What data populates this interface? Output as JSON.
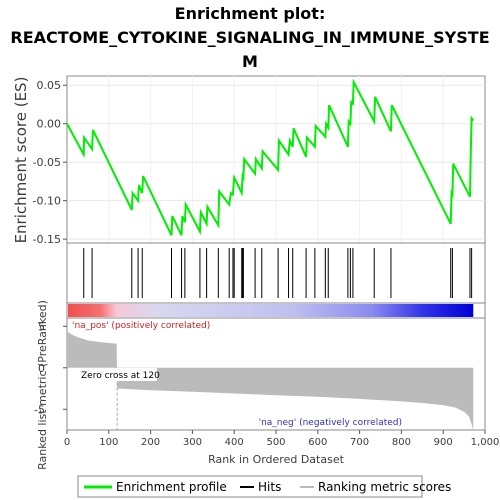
{
  "title_line1": "Enrichment plot:",
  "title_line2": "REACTOME_CYTOKINE_SIGNALING_IN_IMMUNE_SYSTE",
  "title_line3": "M",
  "colors": {
    "profile": "#00ee00",
    "hits": "#000000",
    "metric": "#bbbbbb",
    "pos_label": "#d02020",
    "neg_label": "#3030c0"
  },
  "chart_data": {
    "type": "line",
    "es_panel": {
      "ylabel": "Enrichment score (ES)",
      "ylim": [
        -0.155,
        0.062
      ],
      "yticks": [
        0.05,
        0.0,
        -0.05,
        -0.1,
        -0.15
      ],
      "ytick_labels": [
        "0.05",
        "0.00",
        "-0.05",
        "-0.10",
        "-0.15"
      ],
      "profile": [
        [
          0,
          0.0
        ],
        [
          40,
          -0.04
        ],
        [
          41,
          -0.018
        ],
        [
          60,
          -0.033
        ],
        [
          62,
          -0.008
        ],
        [
          155,
          -0.112
        ],
        [
          157,
          -0.09
        ],
        [
          170,
          -0.1
        ],
        [
          172,
          -0.08
        ],
        [
          180,
          -0.09
        ],
        [
          182,
          -0.068
        ],
        [
          250,
          -0.145
        ],
        [
          252,
          -0.12
        ],
        [
          274,
          -0.145
        ],
        [
          276,
          -0.12
        ],
        [
          282,
          -0.128
        ],
        [
          284,
          -0.105
        ],
        [
          318,
          -0.14
        ],
        [
          320,
          -0.115
        ],
        [
          334,
          -0.13
        ],
        [
          336,
          -0.108
        ],
        [
          362,
          -0.132
        ],
        [
          364,
          -0.088
        ],
        [
          388,
          -0.105
        ],
        [
          392,
          -0.09
        ],
        [
          397,
          -0.092
        ],
        [
          400,
          -0.07
        ],
        [
          418,
          -0.09
        ],
        [
          420,
          -0.068
        ],
        [
          422,
          -0.07
        ],
        [
          424,
          -0.046
        ],
        [
          450,
          -0.065
        ],
        [
          452,
          -0.046
        ],
        [
          466,
          -0.058
        ],
        [
          468,
          -0.036
        ],
        [
          505,
          -0.06
        ],
        [
          507,
          -0.022
        ],
        [
          530,
          -0.04
        ],
        [
          533,
          -0.022
        ],
        [
          540,
          -0.03
        ],
        [
          542,
          -0.006
        ],
        [
          572,
          -0.043
        ],
        [
          574,
          -0.018
        ],
        [
          593,
          -0.03
        ],
        [
          595,
          -0.003
        ],
        [
          618,
          -0.017
        ],
        [
          620,
          0.0
        ],
        [
          625,
          -0.005
        ],
        [
          627,
          0.024
        ],
        [
          672,
          -0.03
        ],
        [
          674,
          0.003
        ],
        [
          678,
          0.0
        ],
        [
          680,
          0.028
        ],
        [
          684,
          0.026
        ],
        [
          686,
          0.054
        ],
        [
          735,
          0.003
        ],
        [
          737,
          0.035
        ],
        [
          775,
          -0.01
        ],
        [
          777,
          0.024
        ],
        [
          918,
          -0.13
        ],
        [
          920,
          -0.09
        ],
        [
          922,
          -0.092
        ],
        [
          924,
          -0.052
        ],
        [
          964,
          -0.095
        ],
        [
          966,
          -0.035
        ],
        [
          968,
          0.007
        ],
        [
          972,
          0.004
        ]
      ]
    },
    "hits": [
      40,
      60,
      155,
      170,
      180,
      250,
      274,
      282,
      318,
      334,
      362,
      388,
      397,
      400,
      418,
      420,
      422,
      450,
      466,
      505,
      530,
      540,
      572,
      593,
      618,
      625,
      672,
      678,
      684,
      735,
      775,
      918,
      922,
      964,
      968
    ],
    "metric_panel": {
      "ylabel": "Ranked list metric (PreRanked)",
      "xlabel": "Rank in Ordered Dataset",
      "ylim": [
        -7.5,
        6.0
      ],
      "yticks": [
        5,
        0,
        -5
      ],
      "ytick_labels": [
        "5",
        "0",
        "-5"
      ],
      "xlim": [
        0,
        1000
      ],
      "xticks": [
        0,
        100,
        200,
        300,
        400,
        500,
        600,
        700,
        800,
        900,
        1000
      ],
      "xtick_labels": [
        "0",
        "100",
        "200",
        "300",
        "400",
        "500",
        "600",
        "700",
        "800",
        "900",
        "1,000"
      ],
      "metric_curve": [
        [
          0,
          4.5
        ],
        [
          5,
          4.2
        ],
        [
          15,
          3.9
        ],
        [
          30,
          3.6
        ],
        [
          50,
          3.3
        ],
        [
          80,
          3.1
        ],
        [
          119,
          2.9
        ],
        [
          120,
          -2.5
        ],
        [
          200,
          -2.7
        ],
        [
          300,
          -2.9
        ],
        [
          400,
          -3.1
        ],
        [
          500,
          -3.3
        ],
        [
          600,
          -3.5
        ],
        [
          700,
          -3.75
        ],
        [
          800,
          -4.05
        ],
        [
          850,
          -4.25
        ],
        [
          900,
          -4.5
        ],
        [
          930,
          -4.8
        ],
        [
          950,
          -5.3
        ],
        [
          962,
          -5.9
        ],
        [
          968,
          -6.8
        ],
        [
          972,
          -7.5
        ]
      ],
      "zero_cross_rank": 120,
      "n": 972
    },
    "annotations": {
      "pos": "'na_pos' (positively correlated)",
      "neg": "'na_neg' (negatively correlated)",
      "zero_cross": "Zero cross at 120"
    },
    "legend": [
      {
        "label": "Enrichment profile",
        "color": "#00ee00"
      },
      {
        "label": "Hits",
        "color": "#000000"
      },
      {
        "label": "Ranking metric scores",
        "color": "#bbbbbb"
      }
    ]
  }
}
